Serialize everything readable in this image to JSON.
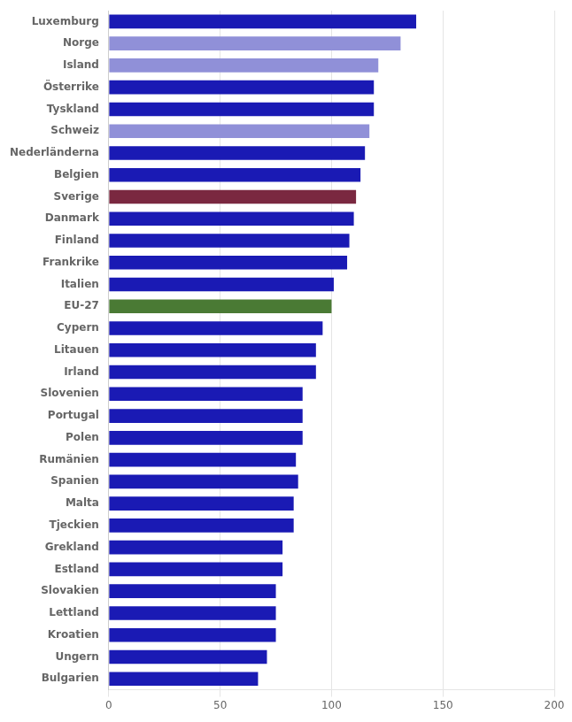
{
  "chart_data": {
    "type": "bar",
    "orientation": "horizontal",
    "categories": [
      "Luxemburg",
      "Norge",
      "Island",
      "Österrike",
      "Tyskland",
      "Schweiz",
      "Nederländerna",
      "Belgien",
      "Sverige",
      "Danmark",
      "Finland",
      "Frankrike",
      "Italien",
      "EU-27",
      "Cypern",
      "Litauen",
      "Irland",
      "Slovenien",
      "Portugal",
      "Polen",
      "Rumänien",
      "Spanien",
      "Malta",
      "Tjeckien",
      "Grekland",
      "Estland",
      "Slovakien",
      "Lettland",
      "Kroatien",
      "Ungern",
      "Bulgarien"
    ],
    "values": [
      138,
      131,
      121,
      119,
      119,
      117,
      115,
      113,
      111,
      110,
      108,
      107,
      101,
      100,
      96,
      93,
      93,
      87,
      87,
      87,
      84,
      85,
      83,
      83,
      78,
      78,
      75,
      75,
      75,
      71,
      67
    ],
    "colors": [
      "#1a1ab4",
      "#9090d8",
      "#9090d8",
      "#1a1ab4",
      "#1a1ab4",
      "#9090d8",
      "#1a1ab4",
      "#1a1ab4",
      "#7a2840",
      "#1a1ab4",
      "#1a1ab4",
      "#1a1ab4",
      "#1a1ab4",
      "#4a7a34",
      "#1a1ab4",
      "#1a1ab4",
      "#1a1ab4",
      "#1a1ab4",
      "#1a1ab4",
      "#1a1ab4",
      "#1a1ab4",
      "#1a1ab4",
      "#1a1ab4",
      "#1a1ab4",
      "#1a1ab4",
      "#1a1ab4",
      "#1a1ab4",
      "#1a1ab4",
      "#1a1ab4",
      "#1a1ab4",
      "#1a1ab4"
    ],
    "xlim": [
      0,
      200
    ],
    "xticks": [
      0,
      50,
      100,
      150,
      200
    ],
    "grid": true
  }
}
